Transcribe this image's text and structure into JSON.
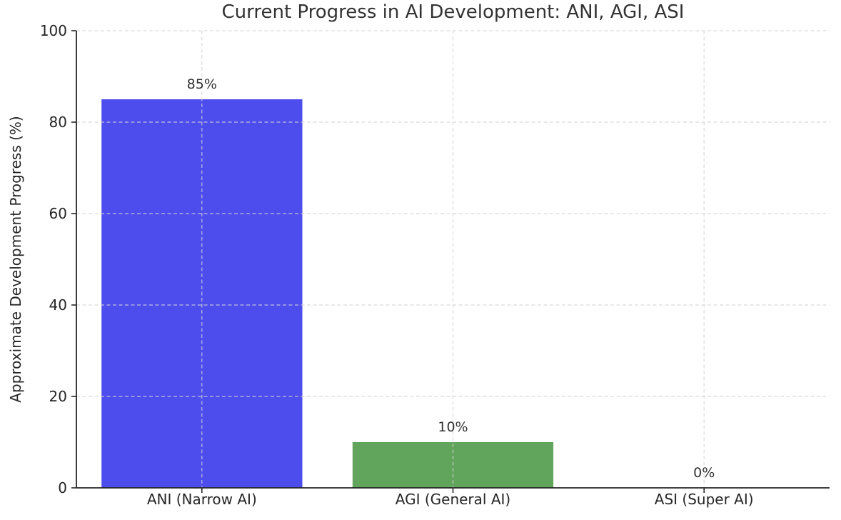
{
  "chart_data": {
    "type": "bar",
    "title": "Current Progress in AI Development: ANI, AGI, ASI",
    "xlabel": "",
    "ylabel": "Approximate Development Progress (%)",
    "categories": [
      "ANI (Narrow AI)",
      "AGI (General AI)",
      "ASI (Super AI)"
    ],
    "values": [
      85,
      10,
      0
    ],
    "bar_labels": [
      "85%",
      "10%",
      "0%"
    ],
    "bar_colors": [
      "#4d4dee",
      "#61a45b",
      null
    ],
    "ylim": [
      0,
      100
    ],
    "yticks": [
      0,
      20,
      40,
      60,
      80,
      100
    ],
    "grid": {
      "visible": true,
      "style": "dashed",
      "axes": "both",
      "color": "#d4d4d4",
      "above_bars": true
    },
    "legend": {
      "visible": false
    },
    "background_color": "#ffffff",
    "axis_color": "#262626",
    "title_color": "#333333"
  }
}
